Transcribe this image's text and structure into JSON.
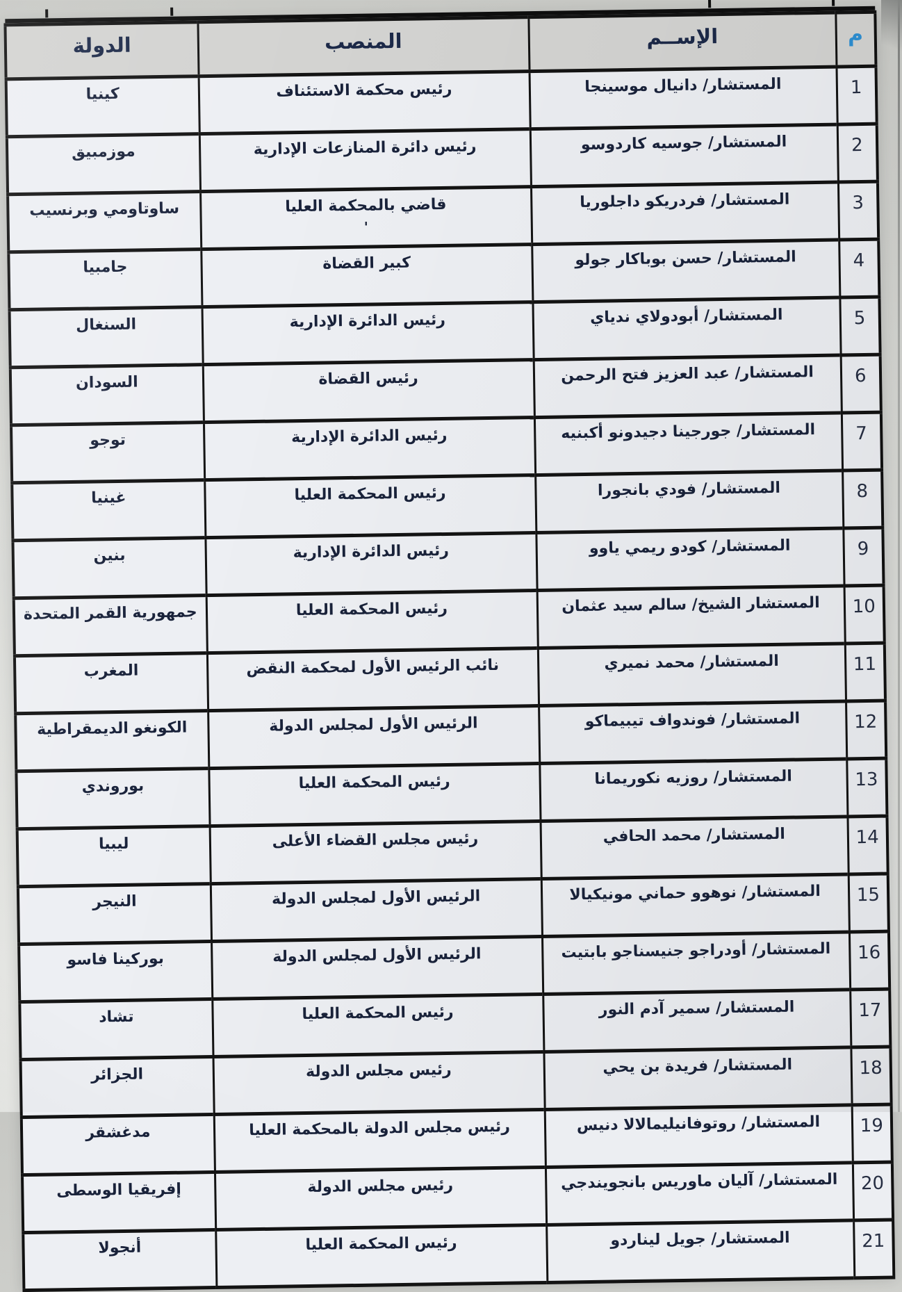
{
  "table": {
    "headers": {
      "num": "م",
      "name": "الإســم",
      "position": "المنصب",
      "country": "الدولة"
    },
    "rows": [
      {
        "num": "1",
        "name": "المستشار/ دانيال موسينجا",
        "position": "رئيس محكمة الاستئناف",
        "country": "كينيا"
      },
      {
        "num": "2",
        "name": "المستشار/ جوسيه كاردوسو",
        "position": "رئيس دائرة المنازعات الإدارية",
        "country": "موزمبيق"
      },
      {
        "num": "3",
        "name": "المستشار/ فردريكو داجلوريا",
        "position": "قاضي بالمحكمة العليا",
        "position_note": "'",
        "country": "ساوتاومي وبرنسيب"
      },
      {
        "num": "4",
        "name": "المستشار/ حسن بوباكار جولو",
        "position": "كبير القضاة",
        "country": "جامبيا"
      },
      {
        "num": "5",
        "name": "المستشار/ أبودولاي ندياي",
        "position": "رئيس الدائرة الإدارية",
        "country": "السنغال"
      },
      {
        "num": "6",
        "name": "المستشار/ عبد العزيز فتح الرحمن",
        "position": "رئيس القضاة",
        "country": "السودان"
      },
      {
        "num": "7",
        "name": "المستشار/ جورجينا دجيدونو أكبنيه",
        "position": "رئيس الدائرة الإدارية",
        "country": "توجو"
      },
      {
        "num": "8",
        "name": "المستشار/ فودي بانجورا",
        "position": "رئيس المحكمة العليا",
        "country": "غينيا"
      },
      {
        "num": "9",
        "name": "المستشار/ كودو ريمي ياوو",
        "position": "رئيس الدائرة الإدارية",
        "country": "بنين"
      },
      {
        "num": "10",
        "name": "المستشار الشيخ/ سالم سيد عثمان",
        "position": "رئيس المحكمة العليا",
        "country": "جمهورية القمر المتحدة"
      },
      {
        "num": "11",
        "name": "المستشار/ محمد نميري",
        "position": "نائب الرئيس الأول لمحكمة النقض",
        "country": "المغرب"
      },
      {
        "num": "12",
        "name": "المستشار/ فوندواف تيبيماكو",
        "position": "الرئيس الأول لمجلس الدولة",
        "country": "الكونغو الديمقراطية"
      },
      {
        "num": "13",
        "name": "المستشار/ روزيه نكوريمانا",
        "position": "رئيس المحكمة العليا",
        "country": "بوروندي"
      },
      {
        "num": "14",
        "name": "المستشار/ محمد الحافي",
        "position": "رئيس مجلس القضاء الأعلى",
        "country": "ليبيا"
      },
      {
        "num": "15",
        "name": "المستشار/ نوهوو حماني مونيكيالا",
        "position": "الرئيس الأول لمجلس الدولة",
        "country": "النيجر"
      },
      {
        "num": "16",
        "name": "المستشار/ أودراجو جنيسناجو بابتيت",
        "position": "الرئيس الأول لمجلس الدولة",
        "country": "بوركينا فاسو"
      },
      {
        "num": "17",
        "name": "المستشار/ سمير آدم النور",
        "position": "رئيس المحكمة العليا",
        "country": "تشاد"
      },
      {
        "num": "18",
        "name": "المستشار/ فريدة بن يحي",
        "position": "رئيس مجلس الدولة",
        "country": "الجزائر"
      },
      {
        "num": "19",
        "name": "المستشار/ روتوفانيليمالالا دنيس",
        "position": "رئيس مجلس الدولة بالمحكمة العليا",
        "country": "مدغشقر"
      },
      {
        "num": "20",
        "name": "المستشار/ آليان ماوريس بانجويندجي",
        "position": "رئيس مجلس الدولة",
        "country": "إفريقيا الوسطى"
      },
      {
        "num": "21",
        "name": "المستشار/ جويل ليناردو",
        "position": "رئيس المحكمة العليا",
        "country": "أنجولا"
      }
    ]
  },
  "colors": {
    "header_meem_blue": "#2e8fd2",
    "header_text": "#1c2948",
    "cell_text": "#19223a",
    "border": "#131313",
    "header_bg": "#d3d3d1",
    "cell_bg": "#edeff3"
  }
}
